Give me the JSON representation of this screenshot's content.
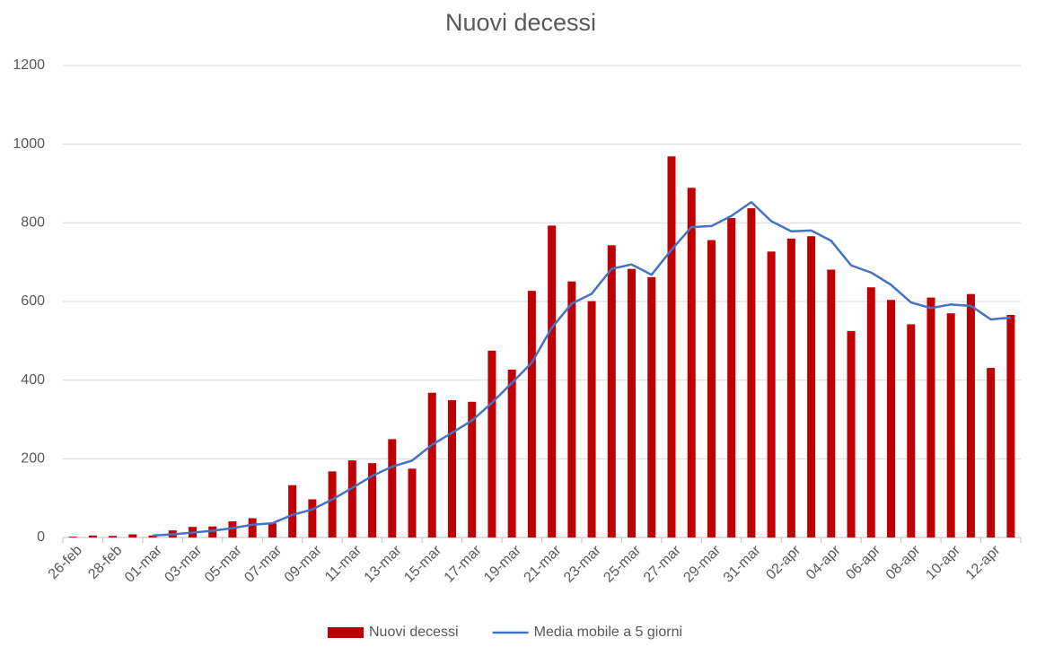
{
  "chart_data": {
    "type": "bar-line",
    "title": "Nuovi decessi",
    "categories": [
      "26-feb",
      null,
      "28-feb",
      null,
      "01-mar",
      null,
      "03-mar",
      null,
      "05-mar",
      null,
      "07-mar",
      null,
      "09-mar",
      null,
      "11-mar",
      null,
      "13-mar",
      null,
      "15-mar",
      null,
      "17-mar",
      null,
      "19-mar",
      null,
      "21-mar",
      null,
      "23-mar",
      null,
      "25-mar",
      null,
      "27-mar",
      null,
      "29-mar",
      null,
      "31-mar",
      null,
      "02-apr",
      null,
      "04-apr",
      null,
      "06-apr",
      null,
      "08-apr",
      null,
      "10-apr",
      null,
      "12-apr",
      null
    ],
    "series": [
      {
        "name": "Nuovi decessi",
        "type": "bar",
        "color": "#c00000",
        "values": [
          2,
          5,
          4,
          8,
          5,
          18,
          27,
          28,
          41,
          49,
          36,
          133,
          97,
          168,
          196,
          189,
          250,
          175,
          368,
          349,
          345,
          475,
          427,
          627,
          793,
          651,
          601,
          743,
          683,
          662,
          969,
          889,
          756,
          812,
          837,
          727,
          760,
          766,
          681,
          525,
          636,
          604,
          542,
          610,
          570,
          619,
          431,
          566
        ]
      },
      {
        "name": "Media mobile a 5 giorni",
        "type": "line",
        "color": "#4472c4",
        "values": [
          null,
          null,
          null,
          null,
          4.8,
          8,
          12.4,
          17.2,
          23.8,
          32.6,
          36.2,
          57.4,
          71.2,
          96.6,
          126,
          156.6,
          180,
          195.6,
          235.6,
          266.2,
          297.4,
          342.4,
          392.8,
          444.6,
          533.4,
          594.6,
          619.8,
          683,
          694.2,
          668,
          731.6,
          789.2,
          791.8,
          817.6,
          852.6,
          804.2,
          778.4,
          780.4,
          754.2,
          691.8,
          673.6,
          642.4,
          597.6,
          583.4,
          592.4,
          589,
          554.4,
          559.2
        ]
      }
    ],
    "ylim": [
      0,
      1200
    ],
    "yticks": [
      0,
      200,
      400,
      600,
      800,
      1000,
      1200
    ],
    "grid": true,
    "legend": "bottom"
  }
}
